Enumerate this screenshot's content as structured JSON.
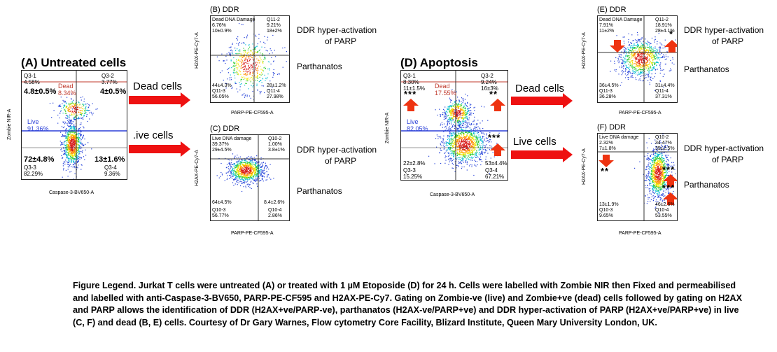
{
  "plots": {
    "A": {
      "title": "(A) Untreated cells",
      "xlabel": "Caspase-3-BV650-A",
      "ylabel": "Zombie NIR-A",
      "q1": "Q3-1",
      "q1v": "4.58%",
      "q1s": "4.8±0.5%",
      "q2": "Q3-2",
      "q2v": "3.77%",
      "q2s": "4±0.5%",
      "dead": "Dead",
      "deadv": "8.34%",
      "live": "Live",
      "livev": "91.36%",
      "q3s": "72±4.8%",
      "q3": "Q3-3",
      "q3v": "82.29%",
      "q4s": "13±1.6%",
      "q4": "Q3-4",
      "q4v": "9.36%"
    },
    "B": {
      "title": "(B) DDR",
      "xlabel": "PARP-PE-CF595-A",
      "ylabel": "H2AX-PE-Cy7-A",
      "tl1": "Dead DNA Damage",
      "tl2": "6.76%",
      "tl3": "10±0.9%",
      "tr1": "Q11-2",
      "tr2": "9.21%",
      "tr3": "18±2%",
      "bl1": "44±4.3%",
      "bl2": "Q11-3",
      "bl3": "56.05%",
      "br1": "28±1.2%",
      "br2": "Q11-4",
      "br3": "27.98%"
    },
    "C": {
      "title": "(C) DDR",
      "xlabel": "PARP-PE-CF595-A",
      "ylabel": "H2AX-PE-Cy7-A",
      "tl1": "Live DNA damage",
      "tl2": "39.37%",
      "tl3": "29±4.5%",
      "tr1": "Q10-2",
      "tr2": "1.00%",
      "tr3": "3.8±1%",
      "bl1": "64±4.5%",
      "bl2": "Q10-3",
      "bl3": "56.77%",
      "br1": "8.4±2.6%",
      "br2": "Q10-4",
      "br3": "2.86%"
    },
    "D": {
      "title": "(D) Apoptosis",
      "xlabel": "Caspase-3-BV650-A",
      "ylabel": "Zombie NIR-A",
      "q1": "Q3-1",
      "q1v": "8.30%",
      "q1s": "11±1.5%",
      "q2": "Q3-2",
      "q2v": "9.24%",
      "q2s": "16±3%",
      "dead": "Dead",
      "deadv": "17.55%",
      "live": "Live",
      "livev": "82.05%",
      "q3s": "22±2.8%",
      "q3": "Q3-3",
      "q3v": "15.25%",
      "q4s": "53±4.4%",
      "q4": "Q3-4",
      "q4v": "67.21%",
      "stars1": "***",
      "stars2": "**",
      "stars3": "***"
    },
    "E": {
      "title": "(E) DDR",
      "xlabel": "PARP-PE-CF595-A",
      "ylabel": "H2AX-PE-Cy7-A",
      "tl1": "Dead DNA Damage",
      "tl2": "7.91%",
      "tl3": "11±2%",
      "tr1": "Q11-2",
      "tr2": "18.91%",
      "tr3": "28±4.1%",
      "bl1": "36±4.5%",
      "bl2": "Q11-3",
      "bl3": "36.28%",
      "br1": "31±4.4%",
      "br2": "Q11-4",
      "br3": "37.31%",
      "stars1": "*"
    },
    "F": {
      "title": "(F) DDR",
      "xlabel": "PARP-PE-CF595-A",
      "ylabel": "H2AX-PE-Cy7-A",
      "tl1": "Live DNA damage",
      "tl2": "2.32%",
      "tl3": "7±1.8%",
      "tr1": "Q10-2",
      "tr2": "34.47%",
      "tr3": "35±2.5%",
      "bl1": "13±1.9%",
      "bl2": "Q10-3",
      "bl3": "9.65%",
      "br1": "46±2.6%",
      "br2": "Q10-4",
      "br3": "53.55%",
      "stars1": "**",
      "stars2": "***",
      "stars3": "***"
    }
  },
  "arrows": {
    "dead1": "Dead cells",
    "live1": ".ive cells",
    "dead2": "Dead cells",
    "live2": "Live cells"
  },
  "side": {
    "hyper": "DDR hyper-activation",
    "ofparp": "of PARP",
    "parth": "Parthanatos"
  },
  "ticks": {
    "t1": "10",
    "t2": "10",
    "t3": "10",
    "t4": "10",
    "t5": "10",
    "t6": "10",
    "t7": "10"
  },
  "legend": {
    "text": "Figure Legend. Jurkat T cells were untreated (A) or treated with 1 µM Etoposide (D) for 24 h. Cells were labelled with Zombie NIR then Fixed and permeabilised and labelled with anti-Caspase-3-BV650, PARP-PE-CF595 and H2AX-PE-Cy7. Gating on Zombie-ve (live) and Zombie+ve (dead) cells followed by gating on H2AX and PARP allows the identification of DDR (H2AX+ve/PARP-ve), parthanatos (H2AX-ve/PARP+ve) and DDR hyper-activation of PARP (H2AX+ve/PARP+ve) in live (C, F) and dead (B, E) cells. Courtesy of Dr Gary Warnes, Flow cytometry Core Facility, Blizard Institute, Queen Mary University London, UK."
  }
}
